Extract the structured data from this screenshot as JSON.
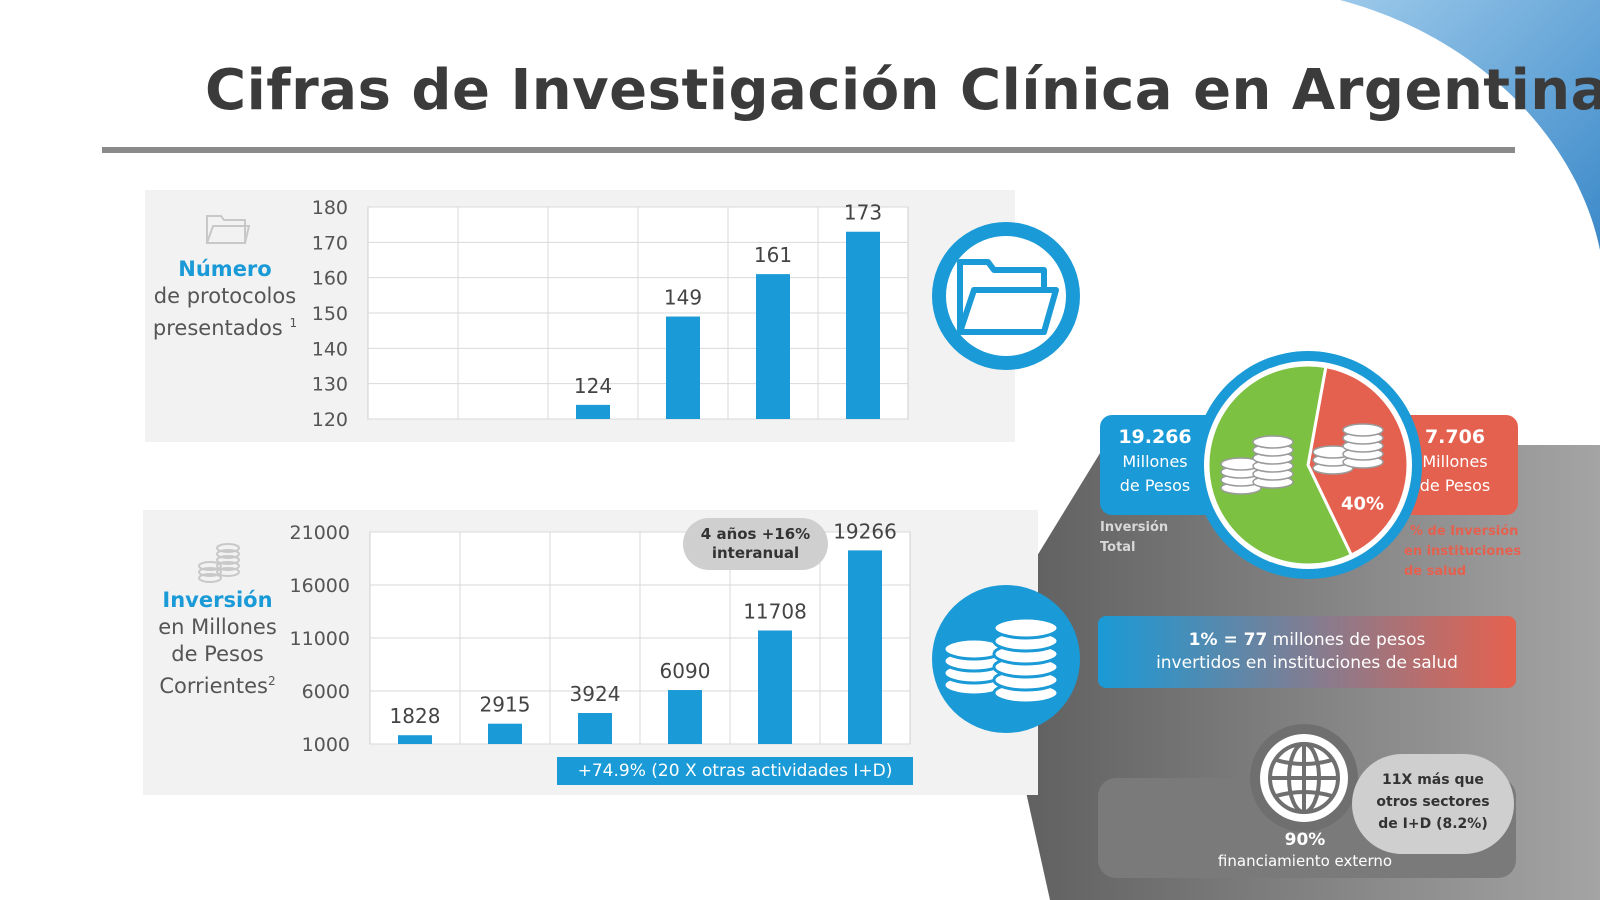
{
  "title": "Cifras de Investigación Clínica en Argentina",
  "colors": {
    "accent": "#1a9ad6",
    "green": "#7cc142",
    "red": "#e5614f",
    "grey": "#8c8c8c"
  },
  "protocols_panel": {
    "label_strong": "Número",
    "label_line2": "de protocolos",
    "label_line3": "presentados",
    "footnote": "1",
    "icon": "folder-icon"
  },
  "investment_panel": {
    "label_strong": "Inversión",
    "label_line2": "en Millones",
    "label_line3": "de Pesos",
    "label_line4": "Corrientes",
    "footnote": "2",
    "icon": "coins-icon",
    "badge": "4 años +16% interanual",
    "banner": "+74.9% (20 X otras actividades I+D)"
  },
  "chart_data": [
    {
      "type": "bar",
      "categories": [
        "",
        "",
        "",
        "",
        "",
        ""
      ],
      "values": [
        null,
        null,
        124,
        149,
        161,
        173
      ],
      "data_labels": [
        "",
        "",
        "124",
        "149",
        "161",
        "173"
      ],
      "ylim": [
        120,
        180
      ],
      "yticks": [
        "120",
        "130",
        "140",
        "150",
        "160",
        "170",
        "180"
      ],
      "grid": true
    },
    {
      "type": "bar",
      "categories": [
        "",
        "",
        "",
        "",
        "",
        ""
      ],
      "values": [
        1828,
        2915,
        3924,
        6090,
        11708,
        19266
      ],
      "data_labels": [
        "1828",
        "2915",
        "3924",
        "6090",
        "11708",
        "19266"
      ],
      "ylim": [
        1000,
        21000
      ],
      "yticks": [
        "1000",
        "6000",
        "11000",
        "16000",
        "21000"
      ],
      "grid": true
    },
    {
      "type": "pie",
      "values": [
        60,
        40
      ],
      "slice_labels": [
        "",
        "40%"
      ],
      "colors": [
        "#7cc142",
        "#e5614f"
      ]
    }
  ],
  "right": {
    "total_value": "19.266",
    "total_unit_1": "Millones",
    "total_unit_2": "de Pesos",
    "total_caption_1": "Inversión",
    "total_caption_2": "Total",
    "health_value": "7.706",
    "health_unit_1": "Millones",
    "health_unit_2": "de Pesos",
    "health_caption_1": "% de Inversión",
    "health_caption_2": "en instituciones",
    "health_caption_3": "de salud",
    "pie_pct": "40%",
    "onepct_strong": "1% = 77",
    "onepct_rest": " millones de pesos",
    "onepct_line2": "invertidos en instituciones de salud",
    "external_pct": "90%",
    "external_label": "financiamiento externo",
    "bubble_line1": "11X más que",
    "bubble_line2": "otros sectores",
    "bubble_line3": "de I+D (8.2%)",
    "globe_icon": "globe-icon"
  }
}
